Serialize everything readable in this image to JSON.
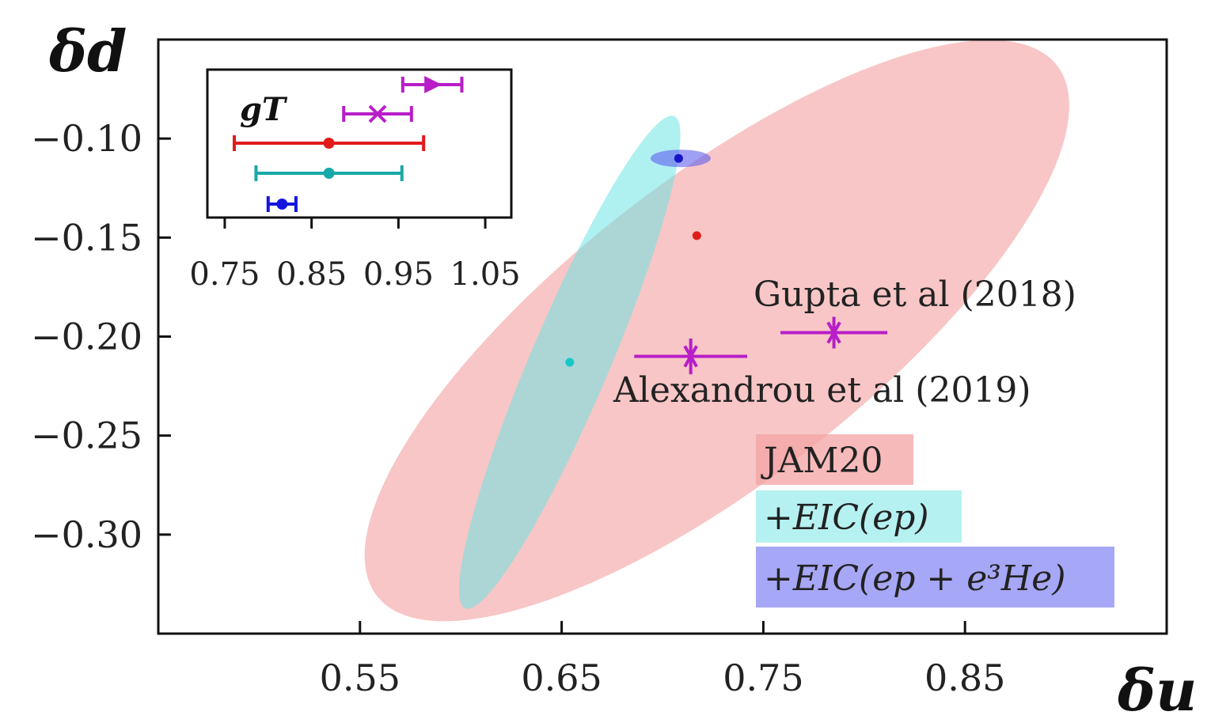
{
  "chart_data": {
    "type": "scatter",
    "xlabel": "δu",
    "ylabel": "δd",
    "xlim": [
      0.45,
      0.95
    ],
    "ylim": [
      -0.35,
      -0.05
    ],
    "xticks": [
      "0.55",
      "0.65",
      "0.75",
      "0.85"
    ],
    "yticks": [
      "−0.10",
      "−0.15",
      "−0.20",
      "−0.25",
      "−0.30"
    ],
    "ellipses": [
      {
        "name": "JAM20",
        "color": "#f4a3a3",
        "center": [
          0.727,
          -0.197
        ]
      },
      {
        "name": "+EIC(ep)",
        "color": "#6ee3e3",
        "center": [
          0.654,
          -0.213
        ]
      },
      {
        "name": "+EIC(ep+e3He)",
        "color": "#5f5ff0",
        "center": [
          0.709,
          -0.11
        ]
      }
    ],
    "points": [
      {
        "series": "JAM20",
        "x": 0.717,
        "y": -0.149,
        "color": "#e21b1b"
      },
      {
        "series": "+EIC(ep)",
        "x": 0.654,
        "y": -0.213,
        "color": "#18c7c7"
      },
      {
        "series": "+EIC(ep+e3He)",
        "x": 0.708,
        "y": -0.11,
        "color": "#1515c8"
      },
      {
        "name": "Gupta et al (2018)",
        "x": 0.785,
        "y": -0.198,
        "xerr": [
          0.0265,
          0.0265
        ],
        "yerr": [
          0.008,
          0.008
        ],
        "color": "#b81ec8"
      },
      {
        "name": "Alexandrou et al (2019)",
        "x": 0.714,
        "y": -0.21,
        "xerr": [
          0.028,
          0.028
        ],
        "yerr": [
          0.009,
          0.009
        ],
        "color": "#b81ec8"
      }
    ],
    "annotations": [
      "Gupta et al (2018)",
      "Alexandrou et al (2019)"
    ],
    "legend": [
      "JAM20",
      "+EIC(ep)",
      "+EIC(ep + e³He)"
    ],
    "legend_position": "bottom-right",
    "inset": {
      "label": "gT",
      "xlim": [
        0.73,
        1.08
      ],
      "xticks": [
        "0.75",
        "0.85",
        "0.95",
        "1.05"
      ],
      "rows": [
        {
          "x": 0.989,
          "xerr": [
            0.034,
            0.034
          ],
          "color": "#b81ec8",
          "marker": "star"
        },
        {
          "x": 0.926,
          "xerr": [
            0.039,
            0.039
          ],
          "color": "#b81ec8",
          "marker": "x"
        },
        {
          "x": 0.87,
          "xerr": [
            0.109,
            0.109
          ],
          "color": "#e21b1b",
          "marker": "dot"
        },
        {
          "x": 0.87,
          "xerr": [
            0.084,
            0.084
          ],
          "color": "#18a8a8",
          "marker": "dot"
        },
        {
          "x": 0.816,
          "xerr": [
            0.016,
            0.016
          ],
          "color": "#1515e0",
          "marker": "dot"
        }
      ]
    }
  }
}
